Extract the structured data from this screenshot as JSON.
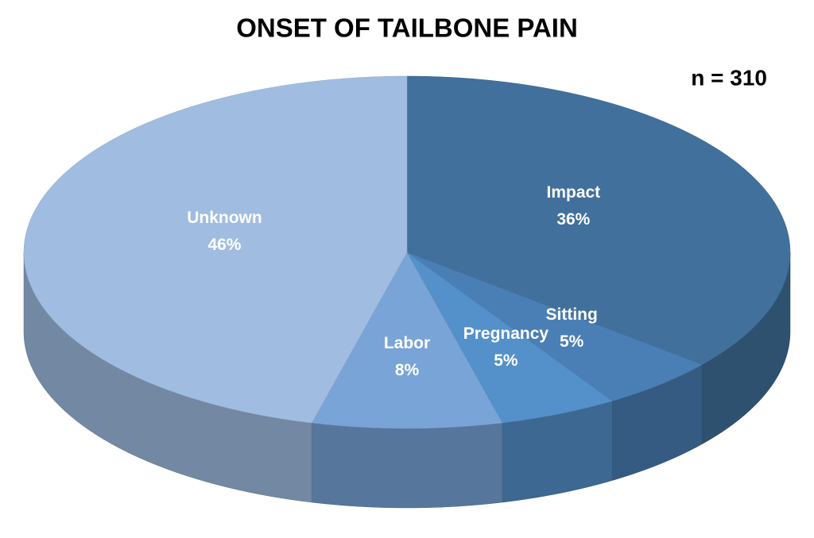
{
  "chart_data": {
    "type": "pie",
    "title": "ONSET OF TAILBONE PAIN",
    "annotation": "n = 310",
    "categories": [
      "Impact",
      "Sitting",
      "Pregnancy",
      "Labor",
      "Unknown"
    ],
    "values": [
      36,
      5,
      5,
      8,
      46
    ],
    "value_labels": [
      "36%",
      "5%",
      "5%",
      "8%",
      "46%"
    ],
    "colors": [
      "#41709c",
      "#4a7fb5",
      "#5490c9",
      "#78a4d7",
      "#a0bde1"
    ]
  }
}
